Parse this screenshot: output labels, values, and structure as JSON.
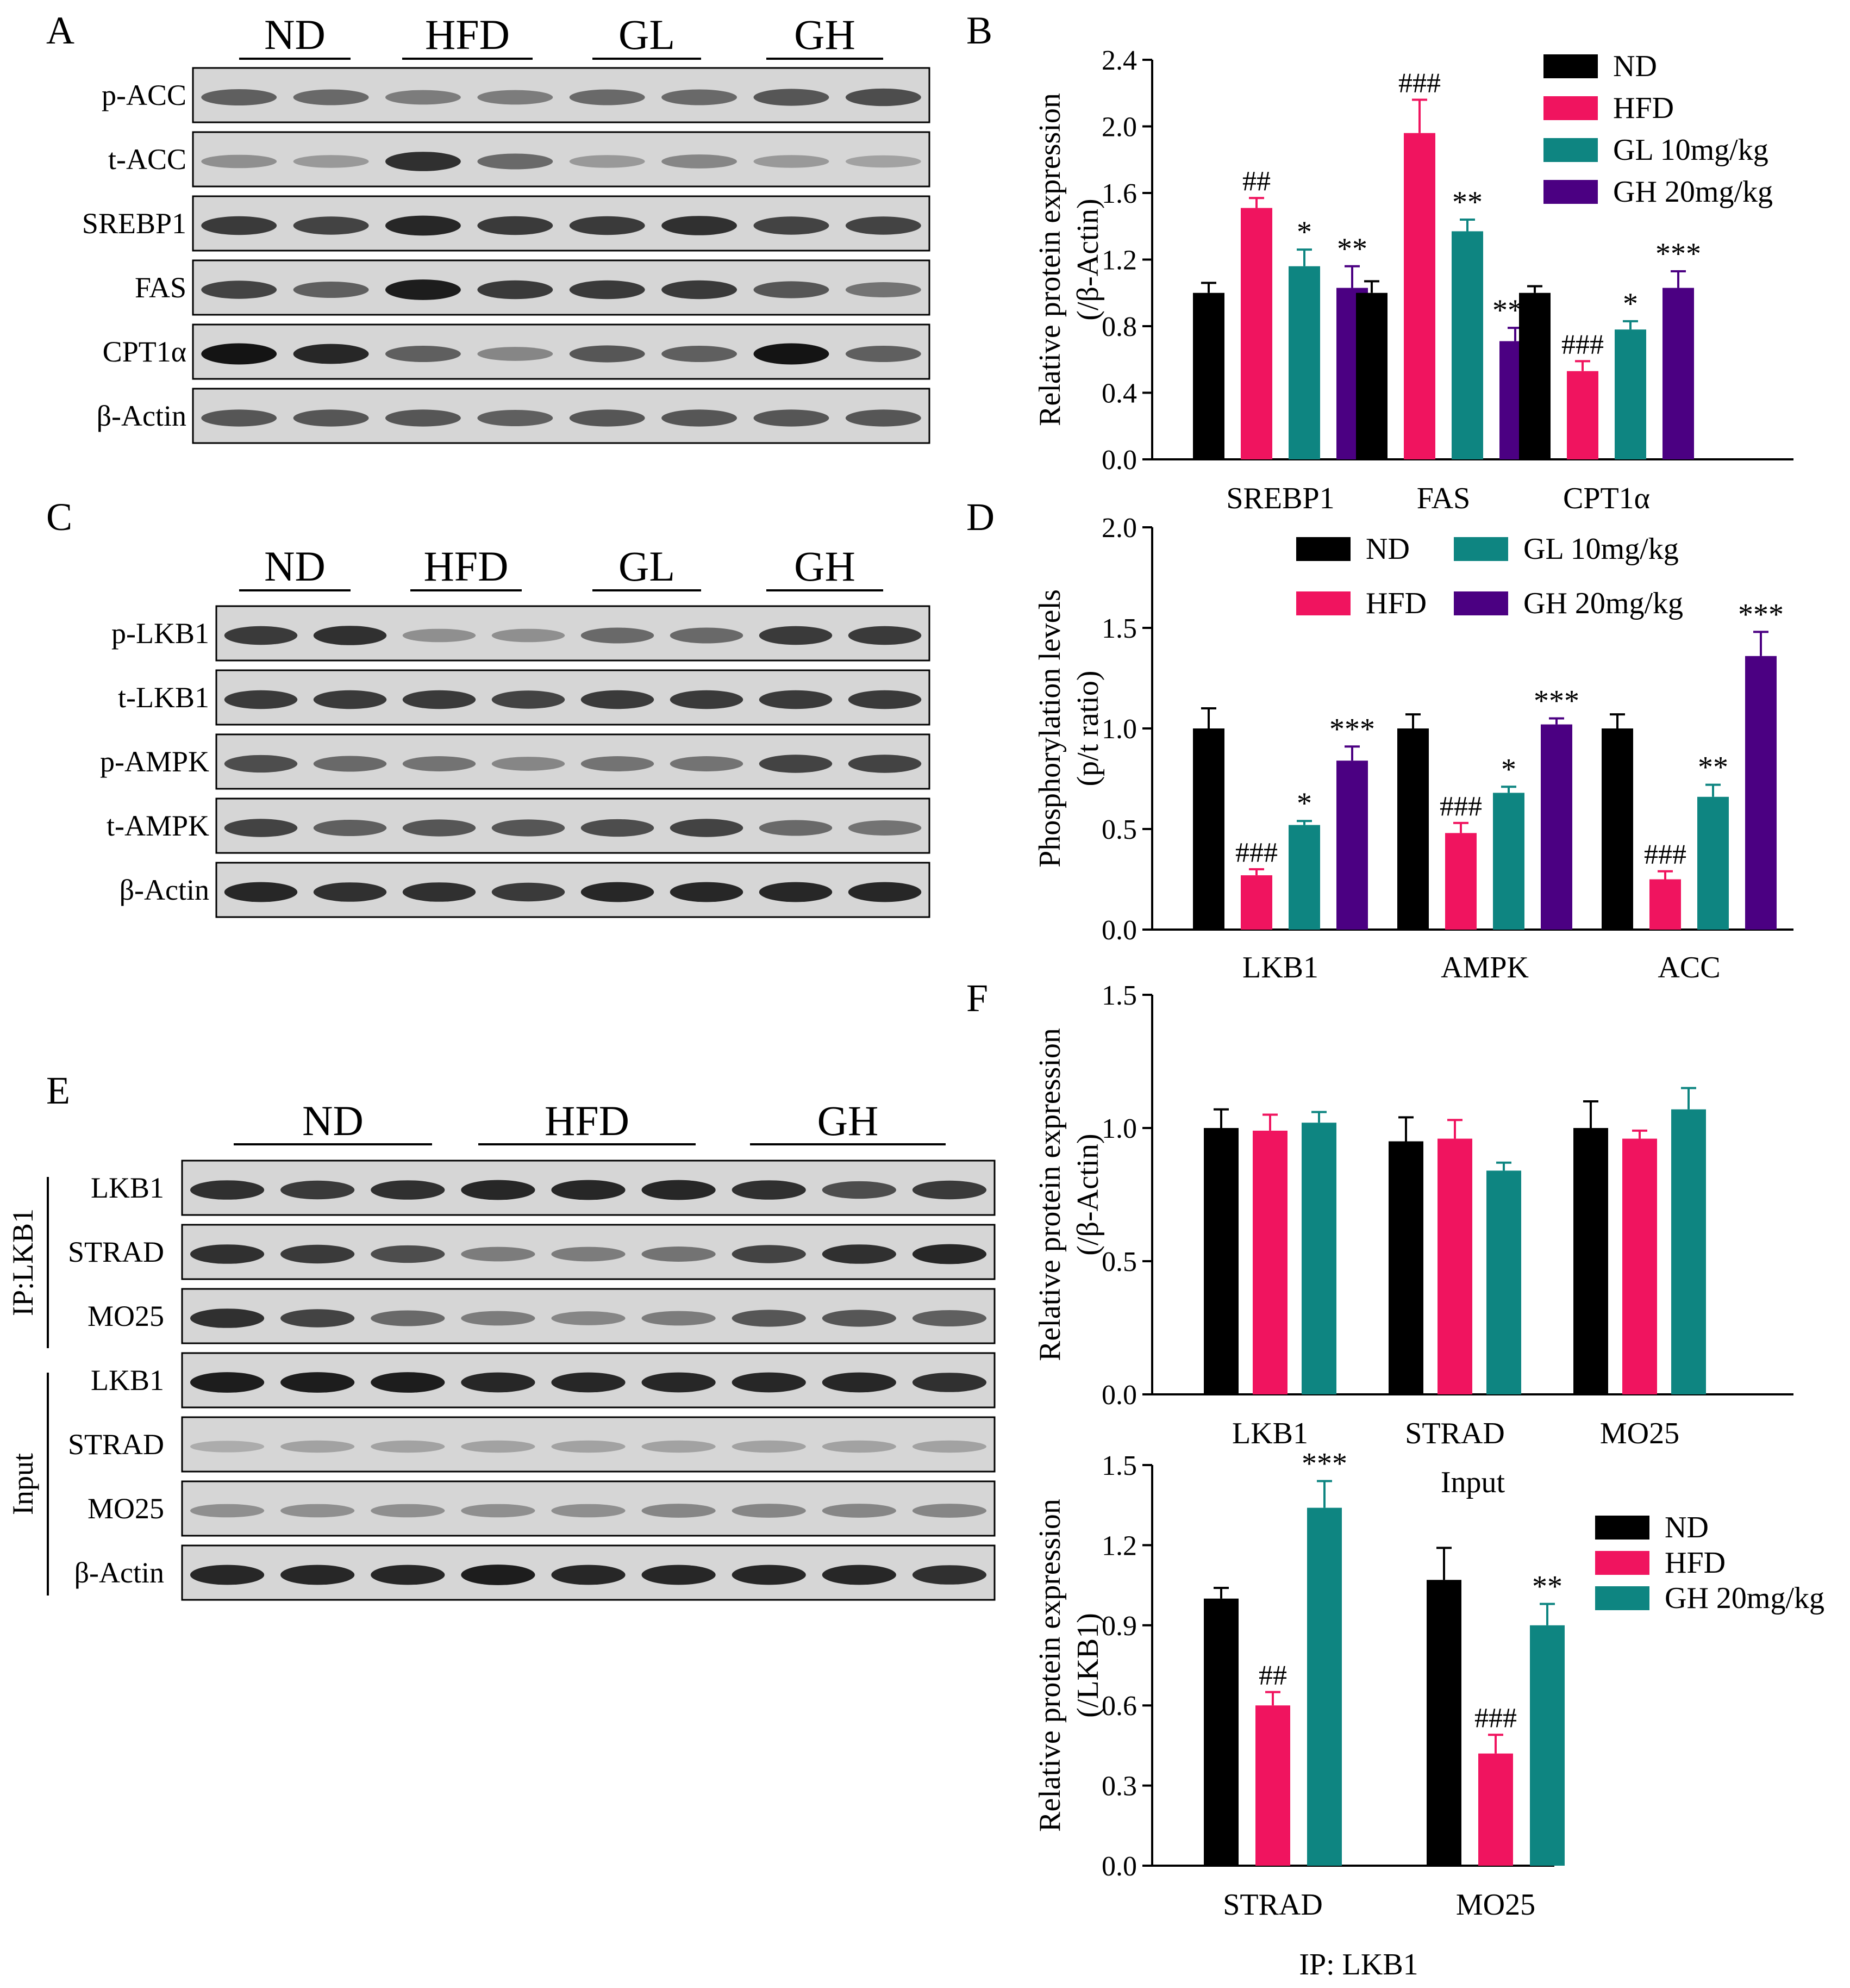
{
  "colors": {
    "ND": "#000000",
    "HFD": "#f0145f",
    "GL": "#0e8581",
    "GH": "#4b0082",
    "GH_F": "#0e8581"
  },
  "panels": {
    "A": {
      "letter": "A",
      "groups": [
        "ND",
        "HFD",
        "GL",
        "GH"
      ],
      "lanes_per_group": 2,
      "rows": [
        {
          "label": "p-ACC",
          "intensity": [
            0.55,
            0.5,
            0.4,
            0.4,
            0.5,
            0.5,
            0.6,
            0.65
          ]
        },
        {
          "label": "t-ACC",
          "intensity": [
            0.3,
            0.25,
            0.8,
            0.5,
            0.25,
            0.35,
            0.25,
            0.2
          ]
        },
        {
          "label": "SREBP1",
          "intensity": [
            0.75,
            0.7,
            0.85,
            0.75,
            0.75,
            0.8,
            0.7,
            0.7
          ]
        },
        {
          "label": "FAS",
          "intensity": [
            0.7,
            0.55,
            0.9,
            0.75,
            0.75,
            0.75,
            0.6,
            0.45
          ]
        },
        {
          "label": "CPT1α",
          "intensity": [
            0.95,
            0.85,
            0.55,
            0.35,
            0.6,
            0.55,
            0.95,
            0.55
          ]
        },
        {
          "label": "β-Actin",
          "intensity": [
            0.6,
            0.6,
            0.6,
            0.55,
            0.6,
            0.6,
            0.6,
            0.6
          ]
        }
      ]
    },
    "C": {
      "letter": "C",
      "groups": [
        "ND",
        "HFD",
        "GL",
        "GH"
      ],
      "lanes_per_group": 2,
      "rows": [
        {
          "label": "p-LKB1",
          "intensity": [
            0.75,
            0.8,
            0.3,
            0.3,
            0.5,
            0.5,
            0.75,
            0.75
          ]
        },
        {
          "label": "t-LKB1",
          "intensity": [
            0.75,
            0.75,
            0.75,
            0.7,
            0.75,
            0.75,
            0.75,
            0.75
          ]
        },
        {
          "label": "p-AMPK",
          "intensity": [
            0.65,
            0.5,
            0.45,
            0.35,
            0.45,
            0.45,
            0.7,
            0.7
          ]
        },
        {
          "label": "t-AMPK",
          "intensity": [
            0.7,
            0.55,
            0.6,
            0.6,
            0.65,
            0.7,
            0.5,
            0.45
          ]
        },
        {
          "label": "β-Actin",
          "intensity": [
            0.85,
            0.8,
            0.8,
            0.75,
            0.85,
            0.85,
            0.85,
            0.85
          ]
        }
      ]
    },
    "E": {
      "letter": "E",
      "groups": [
        "ND",
        "HFD",
        "GH"
      ],
      "lanes_per_group": 3,
      "side_labels": [
        "IP:LKB1",
        "Input"
      ],
      "rows": [
        {
          "label": "LKB1",
          "intensity": [
            0.8,
            0.75,
            0.8,
            0.85,
            0.85,
            0.85,
            0.8,
            0.65,
            0.75
          ]
        },
        {
          "label": "STRAD",
          "intensity": [
            0.8,
            0.75,
            0.65,
            0.4,
            0.4,
            0.45,
            0.7,
            0.8,
            0.85
          ]
        },
        {
          "label": "MO25",
          "intensity": [
            0.8,
            0.7,
            0.5,
            0.4,
            0.35,
            0.4,
            0.6,
            0.6,
            0.55
          ]
        },
        {
          "label": "LKB1",
          "intensity": [
            0.9,
            0.9,
            0.9,
            0.85,
            0.85,
            0.85,
            0.85,
            0.85,
            0.8
          ]
        },
        {
          "label": "STRAD",
          "intensity": [
            0.15,
            0.2,
            0.2,
            0.2,
            0.2,
            0.2,
            0.2,
            0.2,
            0.2
          ]
        },
        {
          "label": "MO25",
          "intensity": [
            0.3,
            0.3,
            0.3,
            0.3,
            0.3,
            0.35,
            0.35,
            0.35,
            0.35
          ]
        },
        {
          "label": "β-Actin",
          "intensity": [
            0.85,
            0.85,
            0.85,
            0.9,
            0.85,
            0.85,
            0.85,
            0.85,
            0.8
          ]
        }
      ]
    }
  },
  "chart_data": [
    {
      "panel": "B",
      "letter": "B",
      "type": "bar",
      "ylabel": [
        "Relative protein expression",
        "(/β-Actin)"
      ],
      "xlabel": "",
      "ylim": [
        0,
        2.4
      ],
      "yticks": [
        "0.0",
        "0.4",
        "0.8",
        "1.2",
        "1.6",
        "2.0",
        "2.4"
      ],
      "categories": [
        "SREBP1",
        "FAS",
        "CPT1α"
      ],
      "series": [
        {
          "key": "ND",
          "name": "ND",
          "values": [
            1.0,
            1.0,
            1.0
          ],
          "err": [
            0.06,
            0.07,
            0.04
          ],
          "marks": [
            "",
            "",
            ""
          ]
        },
        {
          "key": "HFD",
          "name": "HFD",
          "values": [
            1.51,
            1.96,
            0.53
          ],
          "err": [
            0.06,
            0.2,
            0.06
          ],
          "marks": [
            "##",
            "###",
            "###"
          ]
        },
        {
          "key": "GL",
          "name": "GL 10mg/kg",
          "values": [
            1.16,
            1.37,
            0.78
          ],
          "err": [
            0.1,
            0.07,
            0.05
          ],
          "marks": [
            "*",
            "**",
            "*"
          ]
        },
        {
          "key": "GH",
          "name": "GH 20mg/kg",
          "values": [
            1.03,
            0.71,
            1.03
          ],
          "err": [
            0.13,
            0.08,
            0.1
          ],
          "marks": [
            "**",
            "***",
            "***"
          ]
        }
      ],
      "legend": "top-right"
    },
    {
      "panel": "D",
      "letter": "D",
      "type": "bar",
      "ylabel": [
        "Phosphorylation levels",
        "(p/t ratio)"
      ],
      "xlabel": "",
      "ylim": [
        0,
        2.0
      ],
      "yticks": [
        "0.0",
        "0.5",
        "1.0",
        "1.5",
        "2.0"
      ],
      "categories": [
        "LKB1",
        "AMPK",
        "ACC"
      ],
      "series": [
        {
          "key": "ND",
          "name": "ND",
          "values": [
            1.0,
            1.0,
            1.0
          ],
          "err": [
            0.1,
            0.07,
            0.07
          ],
          "marks": [
            "",
            "",
            ""
          ]
        },
        {
          "key": "HFD",
          "name": "HFD",
          "values": [
            0.27,
            0.48,
            0.25
          ],
          "err": [
            0.03,
            0.05,
            0.04
          ],
          "marks": [
            "###",
            "###",
            "###"
          ]
        },
        {
          "key": "GL",
          "name": "GL 10mg/kg",
          "values": [
            0.52,
            0.68,
            0.66
          ],
          "err": [
            0.02,
            0.03,
            0.06
          ],
          "marks": [
            "*",
            "*",
            "**"
          ]
        },
        {
          "key": "GH",
          "name": "GH 20mg/kg",
          "values": [
            0.84,
            1.02,
            1.36
          ],
          "err": [
            0.07,
            0.03,
            0.12
          ],
          "marks": [
            "***",
            "***",
            "***"
          ]
        }
      ],
      "legend": "top, two columns"
    },
    {
      "panel": "F1",
      "letter": "F",
      "type": "bar",
      "ylabel": [
        "Relative protein expression",
        "(/β-Actin)"
      ],
      "xlabel": "Input",
      "ylim": [
        0,
        1.5
      ],
      "yticks": [
        "0.0",
        "0.5",
        "1.0",
        "1.5"
      ],
      "categories": [
        "LKB1",
        "STRAD",
        "MO25"
      ],
      "series": [
        {
          "key": "ND",
          "name": "ND",
          "values": [
            1.0,
            0.95,
            1.0
          ],
          "err": [
            0.07,
            0.09,
            0.1
          ],
          "marks": [
            "",
            "",
            ""
          ]
        },
        {
          "key": "HFD",
          "name": "HFD",
          "values": [
            0.99,
            0.96,
            0.96
          ],
          "err": [
            0.06,
            0.07,
            0.03
          ],
          "marks": [
            "",
            "",
            ""
          ]
        },
        {
          "key": "GH_F",
          "name": "GH 20mg/kg",
          "values": [
            1.02,
            0.84,
            1.07
          ],
          "err": [
            0.04,
            0.03,
            0.08
          ],
          "marks": [
            "",
            "",
            ""
          ]
        }
      ]
    },
    {
      "panel": "F2",
      "letter": "",
      "type": "bar",
      "ylabel": [
        "Relative protein expression",
        "(/LKB1)"
      ],
      "xlabel": "IP: LKB1",
      "ylim": [
        0,
        1.5
      ],
      "yticks": [
        "0.0",
        "0.3",
        "0.6",
        "0.9",
        "1.2",
        "1.5"
      ],
      "categories": [
        "STRAD",
        "MO25"
      ],
      "series": [
        {
          "key": "ND",
          "name": "ND",
          "values": [
            1.0,
            1.07
          ],
          "err": [
            0.04,
            0.12
          ],
          "marks": [
            "",
            ""
          ]
        },
        {
          "key": "HFD",
          "name": "HFD",
          "values": [
            0.6,
            0.42
          ],
          "err": [
            0.05,
            0.07
          ],
          "marks": [
            "##",
            "###"
          ]
        },
        {
          "key": "GH_F",
          "name": "GH 20mg/kg",
          "values": [
            1.34,
            0.9
          ],
          "err": [
            0.1,
            0.08
          ],
          "marks": [
            "***",
            "**"
          ]
        }
      ],
      "legend": "right"
    }
  ]
}
